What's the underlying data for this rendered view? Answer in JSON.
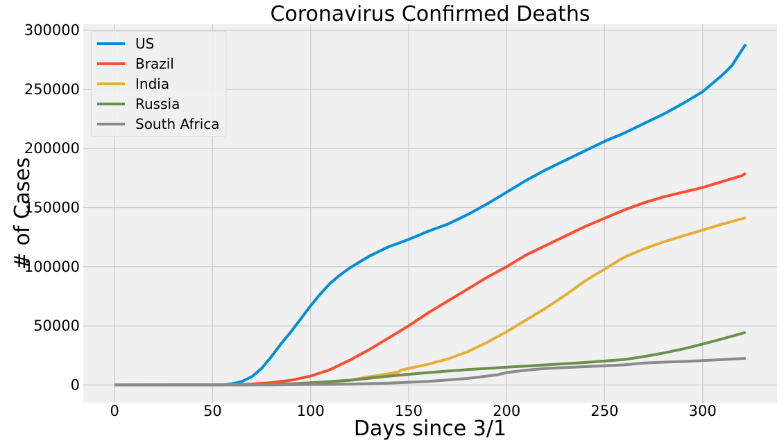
{
  "chart_data": {
    "type": "line",
    "title": "Coronavirus Confirmed Deaths",
    "xlabel": "Days since 3/1",
    "ylabel": "# of Cases",
    "xlim": [
      -16,
      338
    ],
    "ylim": [
      -15000,
      305000
    ],
    "xticks": [
      0,
      50,
      100,
      150,
      200,
      250,
      300
    ],
    "yticks": [
      0,
      50000,
      100000,
      150000,
      200000,
      250000,
      300000
    ],
    "grid": true,
    "legend_position": "top-left",
    "background_color": "#f0f0f0",
    "grid_color": "#cbcbcb",
    "series": [
      {
        "name": "US",
        "color": "#008fd5",
        "x": [
          0,
          55,
          60,
          65,
          70,
          75,
          80,
          85,
          90,
          95,
          100,
          105,
          110,
          115,
          120,
          125,
          130,
          135,
          140,
          145,
          150,
          160,
          170,
          180,
          190,
          200,
          210,
          220,
          230,
          240,
          250,
          260,
          270,
          280,
          290,
          300,
          310,
          315,
          318,
          320,
          322
        ],
        "y": [
          0,
          100,
          1000,
          3000,
          7000,
          14000,
          24000,
          35000,
          45000,
          56000,
          67000,
          77000,
          86000,
          93000,
          99000,
          104000,
          109000,
          113000,
          117000,
          120000,
          123000,
          130000,
          136000,
          144000,
          153000,
          163000,
          173000,
          182000,
          190000,
          198000,
          206000,
          213000,
          221000,
          229000,
          238000,
          248000,
          262000,
          270000,
          278000,
          283000,
          288000
        ]
      },
      {
        "name": "Brazil",
        "color": "#fc4f30",
        "x": [
          0,
          60,
          70,
          80,
          90,
          100,
          110,
          120,
          130,
          140,
          150,
          160,
          170,
          180,
          190,
          200,
          210,
          220,
          230,
          240,
          250,
          260,
          270,
          280,
          290,
          300,
          310,
          320,
          322
        ],
        "y": [
          0,
          200,
          800,
          2000,
          4000,
          7500,
          13000,
          21000,
          30000,
          40000,
          50000,
          61000,
          71000,
          81000,
          91000,
          100000,
          110000,
          118000,
          126000,
          134000,
          141000,
          148000,
          154000,
          159000,
          163000,
          167000,
          172000,
          177000,
          179000
        ]
      },
      {
        "name": "India",
        "color": "#e5ae38",
        "x": [
          0,
          80,
          100,
          120,
          130,
          140,
          145,
          146,
          150,
          160,
          170,
          180,
          190,
          200,
          210,
          220,
          230,
          240,
          250,
          260,
          270,
          280,
          290,
          300,
          310,
          322
        ],
        "y": [
          0,
          200,
          1000,
          4000,
          7000,
          9500,
          11000,
          12500,
          14000,
          17500,
          22000,
          28000,
          36000,
          45000,
          55000,
          65000,
          76000,
          88000,
          98000,
          108000,
          115000,
          121000,
          126000,
          131000,
          136000,
          141500
        ]
      },
      {
        "name": "Russia",
        "color": "#6d904f",
        "x": [
          0,
          70,
          90,
          100,
          120,
          140,
          160,
          180,
          200,
          220,
          240,
          260,
          270,
          280,
          290,
          300,
          310,
          322
        ],
        "y": [
          0,
          200,
          1000,
          1800,
          4000,
          7500,
          10500,
          13000,
          15000,
          17000,
          19000,
          21500,
          24000,
          27000,
          30500,
          34500,
          39000,
          44500
        ]
      },
      {
        "name": "South Africa",
        "color": "#8b8b8b",
        "x": [
          0,
          80,
          120,
          140,
          160,
          180,
          195,
          200,
          210,
          220,
          240,
          260,
          270,
          280,
          290,
          300,
          310,
          322
        ],
        "y": [
          0,
          100,
          700,
          1500,
          3000,
          5500,
          8500,
          10500,
          12500,
          14000,
          15500,
          17000,
          18500,
          19300,
          19900,
          20600,
          21500,
          22500
        ]
      }
    ]
  }
}
